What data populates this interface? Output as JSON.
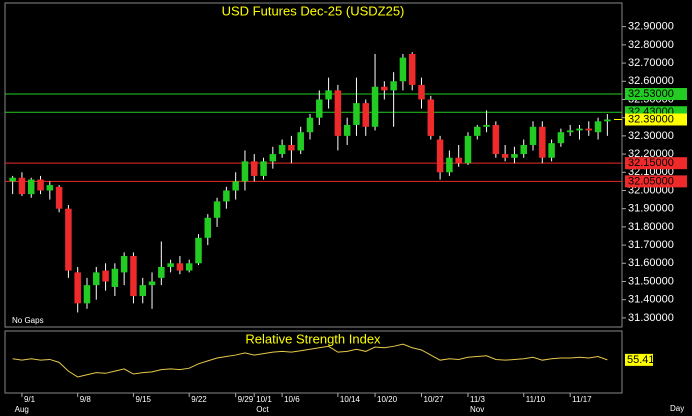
{
  "chart_data": {
    "type": "candlestick",
    "title": "USD Futures Dec-25 (USDZ25)",
    "note": "No Gaps",
    "x_unit": "Day",
    "categories": [
      null,
      "9/1",
      null,
      null,
      null,
      null,
      null,
      "9/8",
      null,
      null,
      null,
      null,
      null,
      "9/15",
      null,
      null,
      null,
      null,
      null,
      "9/22",
      null,
      null,
      null,
      null,
      "9/29",
      null,
      "10/1",
      null,
      null,
      "10/6",
      null,
      null,
      null,
      null,
      null,
      "10/14",
      null,
      null,
      null,
      "10/20",
      null,
      null,
      null,
      null,
      "10/27",
      null,
      null,
      null,
      null,
      "11/3",
      null,
      null,
      null,
      null,
      null,
      "11/10",
      null,
      null,
      null,
      null,
      "11/17",
      null,
      null,
      null,
      null
    ],
    "months": [
      "Aug",
      null,
      null,
      null,
      null,
      null,
      null,
      null,
      null,
      null,
      null,
      null,
      null,
      null,
      null,
      null,
      null,
      null,
      null,
      null,
      null,
      null,
      null,
      null,
      null,
      null,
      "Oct",
      null,
      null,
      null,
      null,
      null,
      null,
      null,
      null,
      null,
      null,
      null,
      null,
      null,
      null,
      null,
      null,
      null,
      null,
      null,
      null,
      null,
      null,
      "Nov",
      null,
      null,
      null,
      null,
      null,
      null,
      null,
      null,
      null,
      null,
      null,
      null,
      null,
      null,
      null
    ],
    "open": [
      32.05,
      32.07,
      31.98,
      32.06,
      32.0,
      32.02,
      31.9,
      31.55,
      31.38,
      31.48,
      31.56,
      31.47,
      31.55,
      31.64,
      31.42,
      31.48,
      31.52,
      31.58,
      31.6,
      31.56,
      31.6,
      31.74,
      31.85,
      31.94,
      32.0,
      32.05,
      32.16,
      32.08,
      32.16,
      32.2,
      32.25,
      32.22,
      32.32,
      32.4,
      32.5,
      32.55,
      32.3,
      32.36,
      32.48,
      32.35,
      32.57,
      32.55,
      32.6,
      32.75,
      32.58,
      32.5,
      32.28,
      32.1,
      32.18,
      32.15,
      32.3,
      32.35,
      32.36,
      32.2,
      32.18,
      32.2,
      32.25,
      32.35,
      32.18,
      32.26,
      32.32,
      32.33,
      32.34,
      32.32,
      32.38
    ],
    "high": [
      32.08,
      32.1,
      32.07,
      32.08,
      32.05,
      32.03,
      31.92,
      31.58,
      31.52,
      31.58,
      31.6,
      31.6,
      31.66,
      31.66,
      31.52,
      31.55,
      31.72,
      31.62,
      31.64,
      31.62,
      31.76,
      31.87,
      31.96,
      32.02,
      32.1,
      32.22,
      32.2,
      32.18,
      32.24,
      32.28,
      32.3,
      32.35,
      32.42,
      32.55,
      32.62,
      32.58,
      32.4,
      32.62,
      32.5,
      32.75,
      32.6,
      32.65,
      32.75,
      32.76,
      32.62,
      32.52,
      32.3,
      32.22,
      32.25,
      32.32,
      32.36,
      32.44,
      32.38,
      32.25,
      32.24,
      32.28,
      32.38,
      32.38,
      32.28,
      32.34,
      32.36,
      32.36,
      32.38,
      32.4,
      32.42
    ],
    "low": [
      31.98,
      31.97,
      31.96,
      31.98,
      31.95,
      31.88,
      31.52,
      31.33,
      31.35,
      31.4,
      31.45,
      31.42,
      31.48,
      31.38,
      31.38,
      31.35,
      31.48,
      31.55,
      31.54,
      31.55,
      31.59,
      31.7,
      31.8,
      31.9,
      31.95,
      32.0,
      32.05,
      32.06,
      32.12,
      32.18,
      32.15,
      32.2,
      32.28,
      32.36,
      32.45,
      32.22,
      32.25,
      32.3,
      32.3,
      32.33,
      32.5,
      32.35,
      32.55,
      32.55,
      32.45,
      32.28,
      32.06,
      32.08,
      32.13,
      32.14,
      32.28,
      32.32,
      32.18,
      32.16,
      32.15,
      32.18,
      32.22,
      32.15,
      32.16,
      32.24,
      32.3,
      32.28,
      32.3,
      32.28,
      32.3
    ],
    "close": [
      32.07,
      31.98,
      32.06,
      32.0,
      32.03,
      31.9,
      31.56,
      31.38,
      31.48,
      31.55,
      31.5,
      31.57,
      31.64,
      31.42,
      31.48,
      31.5,
      31.58,
      31.6,
      31.56,
      31.6,
      31.74,
      31.85,
      31.94,
      32.0,
      32.05,
      32.16,
      32.08,
      32.16,
      32.2,
      32.25,
      32.22,
      32.32,
      32.4,
      32.5,
      32.55,
      32.3,
      32.36,
      32.48,
      32.35,
      32.57,
      32.55,
      32.6,
      32.73,
      32.58,
      32.5,
      32.3,
      32.1,
      32.18,
      32.15,
      32.3,
      32.35,
      32.36,
      32.2,
      32.18,
      32.2,
      32.25,
      32.35,
      32.18,
      32.26,
      32.32,
      32.33,
      32.34,
      32.33,
      32.38,
      32.39
    ],
    "up_color": "#22cc22",
    "down_color": "#ee2a2a",
    "wick_color": "#ffffff",
    "ylim": [
      31.25,
      33.03
    ],
    "yticks": [
      {
        "value": 31.3,
        "label": "31.30000"
      },
      {
        "value": 31.4,
        "label": "31.40000"
      },
      {
        "value": 31.5,
        "label": "31.50000"
      },
      {
        "value": 31.6,
        "label": "31.60000"
      },
      {
        "value": 31.7,
        "label": "31.70000"
      },
      {
        "value": 31.8,
        "label": "31.80000"
      },
      {
        "value": 31.9,
        "label": "31.90000"
      },
      {
        "value": 32.0,
        "label": "32.00000"
      },
      {
        "value": 32.1,
        "label": "32.10000"
      },
      {
        "value": 32.2,
        "label": "32.20000"
      },
      {
        "value": 32.3,
        "label": "32.30000"
      },
      {
        "value": 32.4,
        "label": "32.40000"
      },
      {
        "value": 32.5,
        "label": "32.50000"
      },
      {
        "value": 32.6,
        "label": "32.60000"
      },
      {
        "value": 32.7,
        "label": "32.70000"
      },
      {
        "value": 32.8,
        "label": "32.80000"
      },
      {
        "value": 32.9,
        "label": "32.90000"
      }
    ],
    "levels": [
      {
        "value": 32.53,
        "label": "32.53000",
        "color": "#22cc22"
      },
      {
        "value": 32.43,
        "label": "32.43000",
        "color": "#22cc22"
      },
      {
        "value": 32.15,
        "label": "32.15000",
        "color": "#ee2a2a"
      },
      {
        "value": 32.05,
        "label": "32.05000",
        "color": "#ee2a2a"
      }
    ],
    "last": {
      "value": 32.39,
      "label": "32.39000",
      "color": "#ffff00"
    },
    "rsi": {
      "title": "Relative Strength Index",
      "color": "#e6c84a",
      "ylim": [
        10,
        95
      ],
      "values": [
        57,
        55,
        57,
        55,
        56,
        52,
        40,
        32,
        35,
        38,
        37,
        40,
        43,
        36,
        38,
        39,
        42,
        43,
        42,
        44,
        50,
        54,
        58,
        60,
        62,
        65,
        62,
        64,
        66,
        67,
        66,
        68,
        70,
        72,
        74,
        66,
        67,
        70,
        67,
        73,
        72,
        74,
        77,
        72,
        69,
        62,
        55,
        57,
        56,
        59,
        60,
        61,
        56,
        55,
        56,
        57,
        59,
        55,
        57,
        58,
        58,
        59,
        58,
        60,
        55.41
      ],
      "last_label": "55.41"
    }
  }
}
